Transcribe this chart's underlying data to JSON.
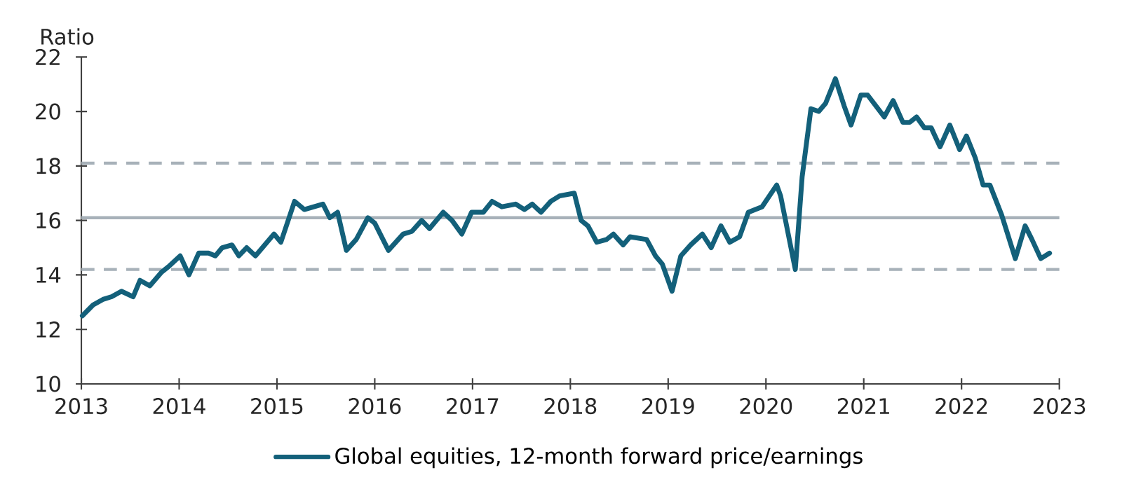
{
  "chart_data": {
    "type": "line",
    "ylabel": "Ratio",
    "xlim": [
      2013,
      2023
    ],
    "xticks": [
      2013,
      2014,
      2015,
      2016,
      2017,
      2018,
      2019,
      2020,
      2021,
      2022,
      2023
    ],
    "ylim": [
      10,
      22
    ],
    "yticks": [
      10,
      12,
      14,
      16,
      18,
      20,
      22
    ],
    "grid": false,
    "legend": "bottom",
    "marker": "none",
    "line_style": "solid",
    "series": [
      {
        "name": "Global equities, 12-month forward price/earnings",
        "color": "#13607a",
        "x": [
          2013.01,
          2013.12,
          2013.22,
          2013.31,
          2013.41,
          2013.53,
          2013.6,
          2013.7,
          2013.82,
          2013.89,
          2014.01,
          2014.1,
          2014.2,
          2014.3,
          2014.37,
          2014.44,
          2014.54,
          2014.61,
          2014.69,
          2014.78,
          2014.97,
          2015.04,
          2015.18,
          2015.28,
          2015.47,
          2015.54,
          2015.62,
          2015.71,
          2015.81,
          2015.93,
          2016.0,
          2016.14,
          2016.29,
          2016.38,
          2016.48,
          2016.56,
          2016.7,
          2016.79,
          2016.89,
          2016.99,
          2017.11,
          2017.2,
          2017.3,
          2017.44,
          2017.53,
          2017.61,
          2017.7,
          2017.8,
          2017.89,
          2018.04,
          2018.11,
          2018.18,
          2018.27,
          2018.37,
          2018.44,
          2018.54,
          2018.61,
          2018.78,
          2018.87,
          2018.94,
          2019.04,
          2019.13,
          2019.23,
          2019.35,
          2019.44,
          2019.54,
          2019.63,
          2019.73,
          2019.82,
          2019.96,
          2020.11,
          2020.15,
          2020.3,
          2020.37,
          2020.46,
          2020.54,
          2020.61,
          2020.71,
          2020.8,
          2020.87,
          2020.97,
          2021.04,
          2021.21,
          2021.3,
          2021.4,
          2021.47,
          2021.54,
          2021.62,
          2021.69,
          2021.78,
          2021.88,
          2021.98,
          2022.05,
          2022.14,
          2022.22,
          2022.29,
          2022.41,
          2022.55,
          2022.65,
          2022.72,
          2022.81,
          2022.9
        ],
        "values": [
          12.5,
          12.9,
          13.1,
          13.2,
          13.4,
          13.2,
          13.8,
          13.6,
          14.1,
          14.3,
          14.7,
          14.0,
          14.8,
          14.8,
          14.7,
          15.0,
          15.1,
          14.7,
          15.0,
          14.7,
          15.5,
          15.2,
          16.7,
          16.4,
          16.6,
          16.1,
          16.3,
          14.9,
          15.3,
          16.1,
          15.9,
          14.9,
          15.5,
          15.6,
          16.0,
          15.7,
          16.3,
          16.0,
          15.5,
          16.3,
          16.3,
          16.7,
          16.5,
          16.6,
          16.4,
          16.6,
          16.3,
          16.7,
          16.9,
          17.0,
          16.0,
          15.8,
          15.2,
          15.3,
          15.5,
          15.1,
          15.4,
          15.3,
          14.7,
          14.4,
          13.4,
          14.7,
          15.1,
          15.5,
          15.0,
          15.8,
          15.2,
          15.4,
          16.3,
          16.5,
          17.3,
          16.9,
          14.2,
          17.6,
          20.1,
          20.0,
          20.3,
          21.2,
          20.2,
          19.5,
          20.6,
          20.6,
          19.8,
          20.4,
          19.6,
          19.6,
          19.8,
          19.4,
          19.4,
          18.7,
          19.5,
          18.6,
          19.1,
          18.3,
          17.3,
          17.3,
          16.2,
          14.6,
          15.8,
          15.3,
          14.6,
          14.8
        ]
      }
    ],
    "ref_lines": [
      {
        "axis": "y",
        "value": 18.1,
        "color": "#a7b1b9",
        "line_style": "dashed"
      },
      {
        "axis": "y",
        "value": 16.1,
        "color": "#a7b1b9",
        "line_style": "solid"
      },
      {
        "axis": "y",
        "value": 14.2,
        "color": "#a7b1b9",
        "line_style": "dashed"
      }
    ]
  }
}
